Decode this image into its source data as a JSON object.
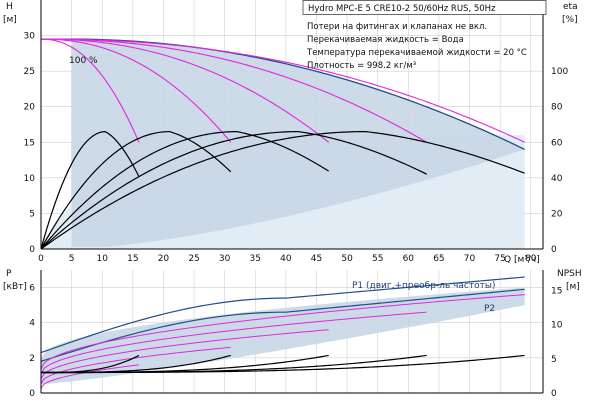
{
  "chart_data": [
    {
      "type": "line",
      "id": "head",
      "title": "Hydro MPC-E 5 CRE10-2 50/60Hz RUS, 50Hz",
      "notes": [
        "Потери на фитингах и клапанах не вкл.",
        "Перекачиваемая жидкость = Вода",
        "Температура перекачиваемой жидкости = 20 °C",
        "Плотность = 998.2 кг/м³"
      ],
      "left_axis": {
        "label_top": "H",
        "label_unit": "[м]",
        "ticks": [
          0,
          5,
          10,
          15,
          20,
          25,
          30
        ],
        "range": [
          0,
          35
        ]
      },
      "right_axis": {
        "label_top": "eta",
        "label_unit": "[%]",
        "ticks": [
          0,
          20,
          40,
          60,
          80,
          100
        ],
        "range": [
          0,
          140
        ]
      },
      "x_axis": {
        "label": "Q [м³/ч]",
        "ticks": [
          0,
          5,
          10,
          15,
          20,
          25,
          30,
          35,
          40,
          45,
          50,
          55,
          60,
          65,
          70,
          75,
          80
        ],
        "range": [
          0,
          82
        ]
      },
      "annotation": "100 %",
      "colors": {
        "envelope": "#c8d6e5",
        "max_curve": "#1f4e89",
        "system": "#e028e0",
        "efficiency": "#000000"
      },
      "series": [
        {
          "pumps": 1,
          "head_max": 29.5,
          "q_max": 16,
          "eta_max_q": 10.5,
          "eta_max": 66
        },
        {
          "pumps": 2,
          "head_max": 29.5,
          "q_max": 31,
          "eta_max_q": 21,
          "eta_max": 66
        },
        {
          "pumps": 3,
          "head_max": 29.5,
          "q_max": 47,
          "eta_max_q": 32,
          "eta_max": 66
        },
        {
          "pumps": 4,
          "head_max": 29.5,
          "q_max": 63,
          "eta_max_q": 42,
          "eta_max": 66
        },
        {
          "pumps": 5,
          "head_max": 29.5,
          "q_max": 79,
          "eta_max_q": 53,
          "eta_max": 66
        }
      ]
    },
    {
      "type": "line",
      "id": "power",
      "left_axis": {
        "label_top": "P",
        "label_unit": "[кВт]",
        "ticks": [
          0,
          2,
          4,
          6
        ],
        "range": [
          0,
          7
        ]
      },
      "right_axis": {
        "label_top": "NPSH",
        "label_unit": "[м]",
        "ticks": [
          0,
          5,
          10,
          15
        ],
        "range": [
          0,
          18
        ]
      },
      "series": [
        {
          "name": "P1 (двиг.+преобр-ль частоты)",
          "values_at_q": [
            [
              0,
              2.3
            ],
            [
              40,
              5.4
            ],
            [
              79,
              6.6
            ]
          ]
        },
        {
          "name": "P2",
          "values_at_q": [
            [
              0,
              1.8
            ],
            [
              40,
              4.6
            ],
            [
              79,
              5.9
            ]
          ]
        }
      ]
    }
  ]
}
